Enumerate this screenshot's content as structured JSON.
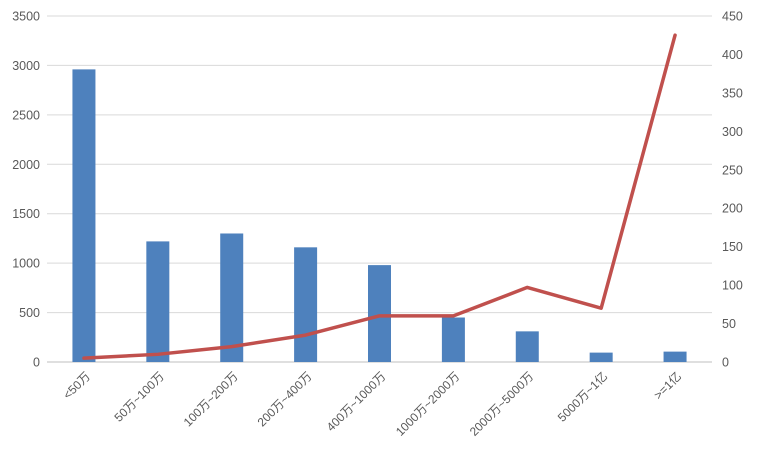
{
  "chart": {
    "title": "",
    "colors": {
      "bar": "#4e81bd",
      "line": "#c0504d",
      "gridline": "#d9d9d9",
      "baseline": "#bfbfbf",
      "tick_text": "#595959",
      "background": "#ffffff"
    }
  },
  "chart_data": {
    "type": "combo",
    "subtypes": [
      "bar",
      "line"
    ],
    "categories": [
      "<50万",
      "50万~100万",
      "100万~200万",
      "200万~400万",
      "400万~1000万",
      "1000万~2000万",
      "2000万~5000万",
      "5000万~1亿",
      ">=1亿"
    ],
    "series": [
      {
        "name": "",
        "type": "bar",
        "axis": "left",
        "color": "#4e81bd",
        "values": [
          2960,
          1220,
          1300,
          1160,
          980,
          450,
          310,
          95,
          105
        ]
      },
      {
        "name": "",
        "type": "line",
        "axis": "right",
        "color": "#c0504d",
        "values": [
          5,
          10,
          20,
          35,
          60,
          60,
          97,
          70,
          425
        ]
      }
    ],
    "left_axis": {
      "min": 0,
      "max": 3500,
      "step": 500,
      "tick_labels": [
        "0",
        "500",
        "1000",
        "1500",
        "2000",
        "2500",
        "3000",
        "3500"
      ]
    },
    "right_axis": {
      "min": 0,
      "max": 450,
      "step": 50,
      "tick_labels": [
        "0",
        "50",
        "100",
        "150",
        "200",
        "250",
        "300",
        "350",
        "400",
        "450"
      ]
    },
    "grid": true,
    "legend": false,
    "xlabel": "",
    "ylabel": ""
  }
}
